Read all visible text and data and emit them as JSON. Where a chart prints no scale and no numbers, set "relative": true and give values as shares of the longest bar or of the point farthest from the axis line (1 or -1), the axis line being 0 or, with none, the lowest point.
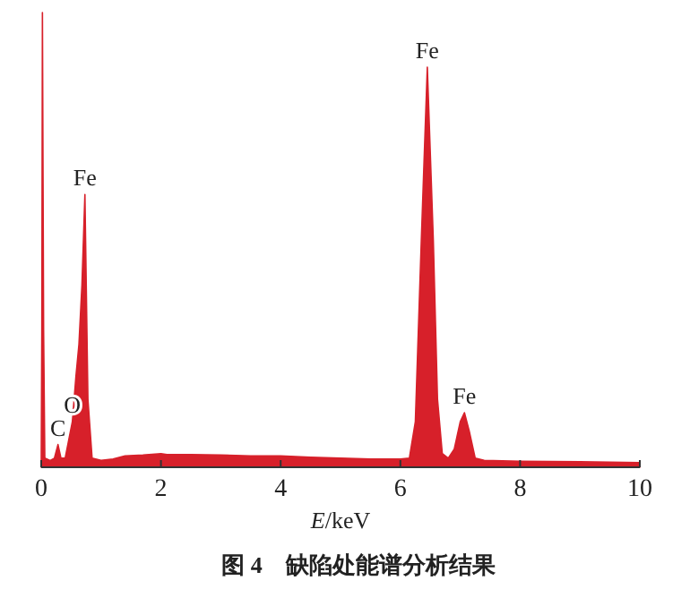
{
  "chart_data": {
    "type": "area",
    "relative": true,
    "color": "#d7202a",
    "title": "图 4　缺陷处能谱分析结果",
    "xlabel": "*E*/keV",
    "xlim": [
      0,
      10
    ],
    "xticks": [
      0,
      2,
      4,
      6,
      8,
      10
    ],
    "x": [
      0,
      0.01,
      0.02,
      0.04,
      0.06,
      0.15,
      0.22,
      0.28,
      0.33,
      0.4,
      0.46,
      0.52,
      0.58,
      0.63,
      0.68,
      0.73,
      0.78,
      0.85,
      1.0,
      1.2,
      1.4,
      1.7,
      2.0,
      2.1,
      2.5,
      3.0,
      3.5,
      4.0,
      4.5,
      5.0,
      5.5,
      6.0,
      6.15,
      6.25,
      6.35,
      6.45,
      6.55,
      6.62,
      6.7,
      6.8,
      6.9,
      7.0,
      7.07,
      7.15,
      7.25,
      7.4,
      8.0,
      9.0,
      10.0
    ],
    "values": [
      0,
      0.3,
      1,
      0.3,
      0.02,
      0.015,
      0.02,
      0.05,
      0.02,
      0.02,
      0.06,
      0.1,
      0.2,
      0.27,
      0.4,
      0.6,
      0.15,
      0.02,
      0.015,
      0.018,
      0.025,
      0.027,
      0.03,
      0.028,
      0.028,
      0.027,
      0.025,
      0.025,
      0.022,
      0.02,
      0.018,
      0.018,
      0.02,
      0.1,
      0.5,
      0.88,
      0.5,
      0.15,
      0.03,
      0.02,
      0.04,
      0.1,
      0.12,
      0.08,
      0.02,
      0.015,
      0.013,
      0.012,
      0.01
    ],
    "annotations": [
      {
        "text": "C",
        "x": 0.28,
        "y": 0.05
      },
      {
        "text": "O",
        "x": 0.52,
        "y": 0.1
      },
      {
        "text": "Fe",
        "x": 0.73,
        "y": 0.6
      },
      {
        "text": "Fe",
        "x": 6.45,
        "y": 0.88
      },
      {
        "text": "Fe",
        "x": 7.07,
        "y": 0.12
      }
    ]
  }
}
